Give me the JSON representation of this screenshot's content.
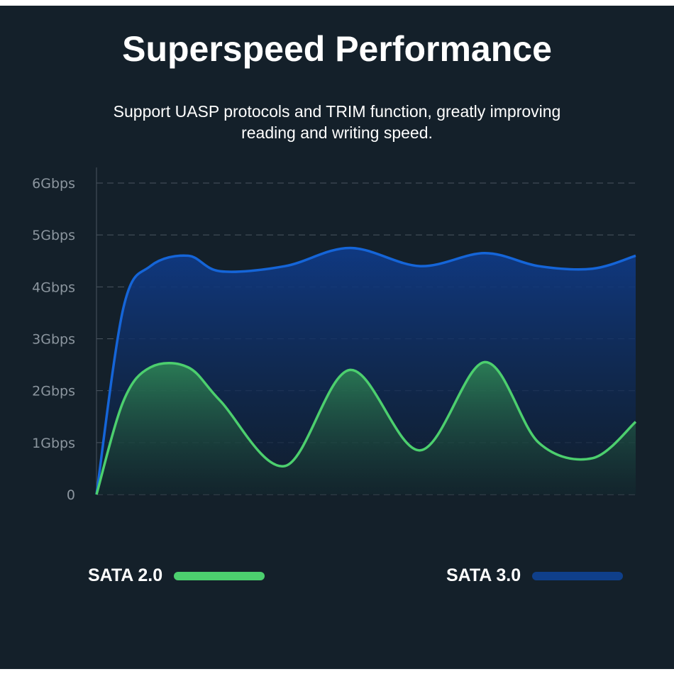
{
  "title": "Superspeed Performance",
  "subtitle": "Support UASP protocols and TRIM function, greatly improving reading and writing speed.",
  "legend": {
    "sata2_label": "SATA 2.0",
    "sata3_label": "SATA 3.0"
  },
  "colors": {
    "background": "#14202a",
    "sata2": "#4ccf6e",
    "sata3": "#1565d8",
    "sata3_legend": "#0f3f8a",
    "grid": "#4a5560"
  },
  "chart_data": {
    "type": "area",
    "title": "",
    "xlabel": "",
    "ylabel": "",
    "ylim": [
      0,
      6
    ],
    "yticks": [
      "0",
      "1Gbps",
      "2Gbps",
      "3Gbps",
      "4Gbps",
      "5Gbps",
      "6Gbps"
    ],
    "grid": true,
    "legend_position": "bottom",
    "x_relative": [
      0,
      0.05,
      0.1,
      0.17,
      0.23,
      0.35,
      0.47,
      0.6,
      0.72,
      0.82,
      0.92,
      1.0
    ],
    "series": [
      {
        "name": "SATA 3.0",
        "values": [
          0,
          3.6,
          4.4,
          4.6,
          4.3,
          4.4,
          4.75,
          4.4,
          4.65,
          4.4,
          4.35,
          4.6
        ]
      },
      {
        "name": "SATA 2.0",
        "values": [
          0,
          1.8,
          2.45,
          2.45,
          1.8,
          0.55,
          2.4,
          0.85,
          2.55,
          1.0,
          0.7,
          1.4
        ]
      }
    ]
  }
}
